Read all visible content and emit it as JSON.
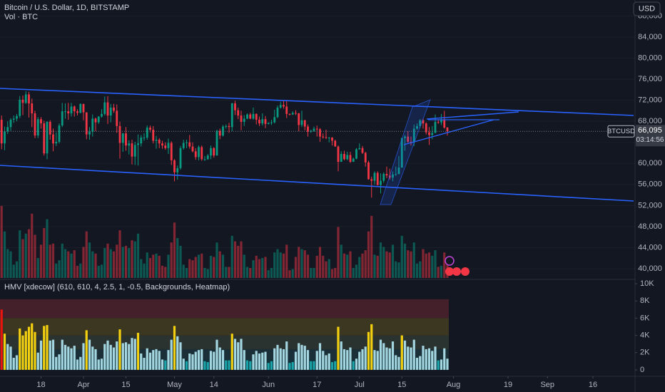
{
  "header": {
    "title": "Bitcoin / U.S. Dollar, 1D, BITSTAMP",
    "currency_button": "USD"
  },
  "chart_data": [
    {
      "type": "candlestick",
      "x": [
        "Mar 4",
        "Mar 5",
        "Mar 6",
        "Mar 7",
        "Mar 8",
        "Mar 9",
        "Mar 10",
        "Mar 11",
        "Mar 12",
        "Mar 13",
        "Mar 14",
        "Mar 15",
        "Mar 16",
        "Mar 17",
        "Mar 18",
        "Mar 19",
        "Mar 20",
        "Mar 21",
        "Mar 22",
        "Mar 23",
        "Mar 24",
        "Mar 25",
        "Mar 26",
        "Mar 27",
        "Mar 28",
        "Mar 29",
        "Mar 30",
        "Mar 31",
        "Apr 1",
        "Apr 2",
        "Apr 3",
        "Apr 4",
        "Apr 5",
        "Apr 6",
        "Apr 7",
        "Apr 8",
        "Apr 9",
        "Apr 10",
        "Apr 11",
        "Apr 12",
        "Apr 13",
        "Apr 14",
        "Apr 15",
        "Apr 16",
        "Apr 17",
        "Apr 18",
        "Apr 19",
        "Apr 20",
        "Apr 21",
        "Apr 22",
        "Apr 23",
        "Apr 24",
        "Apr 25",
        "Apr 26",
        "Apr 27",
        "Apr 28",
        "Apr 29",
        "Apr 30",
        "May 1",
        "May 2",
        "May 3",
        "May 4",
        "May 5",
        "May 6",
        "May 7",
        "May 8",
        "May 9",
        "May 10",
        "May 11",
        "May 12",
        "May 13",
        "May 14",
        "May 15",
        "May 16",
        "May 17",
        "May 18",
        "May 19",
        "May 20",
        "May 21",
        "May 22",
        "May 23",
        "May 24",
        "May 25",
        "May 26",
        "May 27",
        "May 28",
        "May 29",
        "May 30",
        "May 31",
        "Jun 1",
        "Jun 2",
        "Jun 3",
        "Jun 4",
        "Jun 5",
        "Jun 6",
        "Jun 7",
        "Jun 8",
        "Jun 9",
        "Jun 10",
        "Jun 11",
        "Jun 12",
        "Jun 13",
        "Jun 14",
        "Jun 15",
        "Jun 16",
        "Jun 17",
        "Jun 18",
        "Jun 19",
        "Jun 20",
        "Jun 21",
        "Jun 22",
        "Jun 23",
        "Jun 24",
        "Jun 25",
        "Jun 26",
        "Jun 27",
        "Jun 28",
        "Jun 29",
        "Jun 30",
        "Jul 1",
        "Jul 2",
        "Jul 3",
        "Jul 4",
        "Jul 5",
        "Jul 6",
        "Jul 7",
        "Jul 8",
        "Jul 9",
        "Jul 10",
        "Jul 11",
        "Jul 12",
        "Jul 13",
        "Jul 14",
        "Jul 15",
        "Jul 16",
        "Jul 17",
        "Jul 18",
        "Jul 19",
        "Jul 20",
        "Jul 21",
        "Jul 22",
        "Jul 23",
        "Jul 24",
        "Jul 25",
        "Jul 26",
        "Jul 27",
        "Jul 28",
        "Jul 29",
        "Jul 30"
      ],
      "open": [
        67500,
        68300,
        63800,
        66100,
        66900,
        68300,
        68500,
        69000,
        72100,
        71500,
        73100,
        71400,
        69500,
        65300,
        68400,
        67600,
        61900,
        67900,
        65500,
        63800,
        64100,
        67200,
        69900,
        69900,
        69500,
        70800,
        69900,
        69600,
        71300,
        69700,
        65500,
        66000,
        68500,
        67800,
        68900,
        69400,
        71600,
        69100,
        70600,
        70000,
        67100,
        63900,
        65700,
        63400,
        63800,
        61300,
        63500,
        63800,
        64900,
        64900,
        66800,
        66400,
        64300,
        64500,
        63800,
        63400,
        62900,
        63900,
        60600,
        58300,
        59100,
        62900,
        63900,
        64000,
        63200,
        62300,
        61200,
        63100,
        60800,
        60800,
        61500,
        62900,
        61500,
        66200,
        65300,
        67000,
        67100,
        66900,
        71400,
        70100,
        69100,
        67900,
        68500,
        69300,
        68500,
        69400,
        68300,
        67600,
        68400,
        67500,
        67700,
        67800,
        68800,
        70600,
        71100,
        70800,
        69400,
        69300,
        69600,
        69500,
        67300,
        68200,
        67000,
        66000,
        66200,
        66600,
        66500,
        65100,
        65000,
        64900,
        64900,
        64300,
        63200,
        60300,
        61800,
        60800,
        61600,
        60300,
        60900,
        62700,
        62900,
        62000,
        60200,
        57000,
        56700,
        58200,
        55900,
        56700,
        58000,
        57700,
        57300,
        57900,
        58000,
        59200,
        64800,
        65100,
        64100,
        64000,
        66600,
        67100,
        68200,
        67600,
        65900,
        65400,
        65800,
        67900,
        67800,
        68300,
        66800
      ],
      "high": [
        69000,
        69100,
        67000,
        68000,
        68600,
        69100,
        69400,
        72800,
        72900,
        73700,
        73600,
        72300,
        70000,
        68800,
        68800,
        68100,
        68000,
        68200,
        66600,
        65900,
        67600,
        71500,
        71400,
        71500,
        71500,
        71000,
        70300,
        71400,
        71300,
        69700,
        66900,
        69300,
        68700,
        69000,
        70300,
        72700,
        72800,
        71300,
        71300,
        71200,
        67900,
        65800,
        66900,
        64400,
        64500,
        64100,
        65500,
        65400,
        65700,
        67200,
        67200,
        67100,
        65200,
        64800,
        64300,
        64000,
        64700,
        64200,
        60800,
        59600,
        63300,
        64500,
        64500,
        65400,
        64000,
        62900,
        63400,
        63400,
        61400,
        61800,
        63400,
        63100,
        66400,
        66600,
        67300,
        67400,
        67700,
        71500,
        71900,
        70600,
        70000,
        69200,
        69500,
        69600,
        70600,
        69500,
        68900,
        69500,
        69000,
        67800,
        68300,
        70200,
        71000,
        71700,
        71900,
        71900,
        69500,
        69900,
        70100,
        69600,
        70000,
        68300,
        67400,
        66400,
        67000,
        67200,
        66700,
        65700,
        66400,
        65000,
        65000,
        64500,
        63400,
        62300,
        62400,
        62200,
        62200,
        61100,
        62900,
        63800,
        63300,
        62200,
        60500,
        57500,
        58500,
        58500,
        58100,
        58300,
        59400,
        59000,
        58500,
        59400,
        61400,
        64900,
        65400,
        66100,
        65100,
        67400,
        67600,
        68400,
        68500,
        67800,
        66900,
        67100,
        69300,
        68300,
        69400,
        70000,
        66900
      ],
      "low": [
        66500,
        62700,
        62500,
        65600,
        66200,
        67700,
        68000,
        68600,
        69200,
        71300,
        68700,
        66900,
        64800,
        64800,
        66600,
        61500,
        60800,
        64500,
        62300,
        63300,
        63800,
        66900,
        68500,
        68300,
        68900,
        68900,
        69100,
        69500,
        68200,
        64600,
        64500,
        65100,
        66100,
        67500,
        68700,
        69100,
        67500,
        67800,
        69600,
        65800,
        60900,
        62200,
        62400,
        61700,
        59800,
        59700,
        59600,
        63200,
        64300,
        64500,
        65900,
        63800,
        62800,
        62900,
        62800,
        62600,
        61800,
        59700,
        56600,
        56900,
        58800,
        62600,
        62900,
        62800,
        62100,
        60700,
        60600,
        60500,
        60500,
        60700,
        60800,
        61100,
        61500,
        64600,
        65100,
        66600,
        65800,
        66100,
        69200,
        68400,
        66300,
        67100,
        68400,
        68400,
        68300,
        67400,
        67100,
        67200,
        66700,
        67400,
        67300,
        67600,
        68600,
        70400,
        70400,
        68600,
        69100,
        69200,
        69200,
        66100,
        66900,
        66300,
        65100,
        65800,
        66000,
        65100,
        64100,
        64700,
        64600,
        64000,
        63400,
        63200,
        58500,
        60300,
        60600,
        60600,
        60100,
        60300,
        60800,
        62600,
        61800,
        59400,
        56900,
        53500,
        56000,
        55800,
        54300,
        56300,
        57200,
        56900,
        56600,
        57600,
        57900,
        59200,
        62400,
        63900,
        63400,
        63300,
        66400,
        66700,
        66600,
        65500,
        63500,
        64600,
        65700,
        67500,
        67300,
        66600,
        65300
      ],
      "close": [
        68300,
        63800,
        66100,
        66900,
        68300,
        68500,
        69000,
        72100,
        71500,
        73100,
        71400,
        69500,
        65300,
        68400,
        67600,
        61900,
        67900,
        65500,
        63800,
        64100,
        67200,
        69900,
        69900,
        69500,
        70800,
        69900,
        69600,
        71300,
        69700,
        65500,
        66000,
        68500,
        67800,
        68900,
        69400,
        71600,
        69100,
        70600,
        70000,
        67100,
        63900,
        65700,
        63400,
        63800,
        61300,
        63500,
        63800,
        64900,
        64900,
        66800,
        66400,
        64300,
        64500,
        63800,
        63400,
        62900,
        63900,
        60600,
        58300,
        59100,
        62900,
        63900,
        64000,
        63200,
        62300,
        61200,
        63100,
        60800,
        60800,
        61500,
        62900,
        61500,
        66200,
        65300,
        67000,
        67100,
        66900,
        71400,
        70100,
        69100,
        67900,
        68500,
        69300,
        68500,
        69400,
        68300,
        67600,
        68400,
        67500,
        67700,
        67800,
        68800,
        70600,
        71100,
        70800,
        69400,
        69300,
        69600,
        69500,
        67300,
        68200,
        67000,
        66000,
        66200,
        66600,
        66500,
        65100,
        65000,
        64900,
        64900,
        64300,
        63200,
        60300,
        61800,
        60800,
        61600,
        60300,
        60900,
        62700,
        62900,
        62000,
        60200,
        57000,
        56700,
        58200,
        55900,
        56700,
        58000,
        57700,
        57300,
        57900,
        58000,
        59200,
        64800,
        65100,
        64100,
        64000,
        66600,
        67100,
        68200,
        67600,
        65900,
        65400,
        65800,
        67900,
        67800,
        68300,
        66800,
        66095
      ],
      "up_color": "#089981",
      "down_color": "#f23645",
      "ylim": [
        38240,
        91040
      ],
      "yticks": [
        {
          "value": 40000,
          "label": "40,000"
        },
        {
          "value": 44000,
          "label": "44,000"
        },
        {
          "value": 48000,
          "label": "48,000"
        },
        {
          "value": 52000,
          "label": "52,000"
        },
        {
          "value": 56000,
          "label": "56,000"
        },
        {
          "value": 60000,
          "label": "60,000"
        },
        {
          "value": 64000,
          "label": "64,000"
        },
        {
          "value": 68000,
          "label": "68,000"
        },
        {
          "value": 72000,
          "label": "72,000"
        },
        {
          "value": 76000,
          "label": "76,000"
        },
        {
          "value": 80000,
          "label": "80,000"
        },
        {
          "value": 84000,
          "label": "84,000"
        },
        {
          "value": 88000,
          "label": "88,000"
        }
      ],
      "xticks": [
        {
          "value": "Mar 18",
          "label": "18"
        },
        {
          "value": "Apr 1",
          "label": "Apr"
        },
        {
          "value": "Apr 15",
          "label": "15"
        },
        {
          "value": "May 1",
          "label": "May"
        },
        {
          "value": "May 14",
          "label": "14"
        },
        {
          "value": "Jun 1",
          "label": "Jun"
        },
        {
          "value": "Jun 17",
          "label": "17"
        },
        {
          "value": "Jul 1",
          "label": "Jul"
        },
        {
          "value": "Jul 15",
          "label": "15"
        },
        {
          "value": "Aug 1",
          "label": "Aug"
        },
        {
          "value": "Aug 19",
          "label": "19"
        },
        {
          "value": "Sep 1",
          "label": "Sep"
        },
        {
          "value": "Sep 16",
          "label": "16"
        }
      ],
      "last_price": {
        "symbol": "BTCUSD",
        "value_label": "66,095",
        "countdown": "03:14:56"
      }
    },
    {
      "type": "volume",
      "title": "Vol · BTC",
      "values": [
        3800,
        6500,
        4200,
        2600,
        2400,
        1200,
        1500,
        4300,
        3500,
        4000,
        4400,
        5800,
        3900,
        1800,
        3000,
        4500,
        5300,
        3000,
        3100,
        1300,
        1600,
        3100,
        2600,
        2400,
        2200,
        2500,
        1100,
        1300,
        2800,
        4200,
        3200,
        2400,
        2200,
        1100,
        1200,
        2700,
        3100,
        2600,
        2400,
        3000,
        4300,
        2800,
        2900,
        2700,
        3400,
        3300,
        4000,
        1700,
        1300,
        2300,
        1800,
        2100,
        2200,
        2000,
        1100,
        1000,
        2100,
        3200,
        5000,
        3600,
        2900,
        1200,
        900,
        1700,
        1600,
        1900,
        2100,
        2200,
        900,
        800,
        2000,
        1900,
        3200,
        2400,
        2100,
        1000,
        1000,
        3800,
        3300,
        2900,
        3300,
        2100,
        1000,
        900,
        1600,
        2000,
        1700,
        1800,
        1900,
        700,
        900,
        2300,
        2600,
        2300,
        2200,
        3000,
        700,
        800,
        1900,
        2800,
        2600,
        2500,
        2100,
        900,
        900,
        2000,
        2800,
        2000,
        1500,
        1700,
        800,
        900,
        4600,
        3000,
        2200,
        2100,
        2400,
        900,
        1200,
        1900,
        2200,
        2500,
        4200,
        5600,
        2100,
        2000,
        3200,
        2800,
        2400,
        2300,
        3000,
        1500,
        1400,
        3800,
        3100,
        2500,
        2400,
        3200,
        1300,
        1500,
        2600,
        2200,
        2300,
        2000,
        2500,
        1000,
        1100,
        2300,
        1200
      ],
      "ylim": [
        0,
        9000
      ]
    },
    {
      "type": "hmv",
      "title": "HMV [xdecow] (610, 610, 4, 2.5, 1, -0.5, Backgrounds, Heatmap)",
      "values": [
        7400,
        7000,
        4200,
        3000,
        2700,
        1400,
        1700,
        4800,
        4000,
        4500,
        5000,
        5400,
        4400,
        2000,
        3400,
        5100,
        5200,
        3400,
        3500,
        1500,
        1800,
        3500,
        2900,
        2700,
        2500,
        2800,
        1200,
        1500,
        3100,
        4600,
        3500,
        2700,
        2400,
        1200,
        1300,
        3000,
        3400,
        2900,
        2600,
        3300,
        4700,
        3100,
        3200,
        3000,
        3700,
        3600,
        4300,
        1900,
        1400,
        2500,
        2000,
        2300,
        2400,
        2200,
        1200,
        1100,
        2300,
        3500,
        5100,
        3900,
        3200,
        1300,
        1000,
        1900,
        1800,
        2100,
        2300,
        2400,
        1000,
        900,
        2200,
        2100,
        3500,
        2600,
        2300,
        1100,
        1100,
        4200,
        3600,
        3200,
        3600,
        2300,
        1100,
        1000,
        1800,
        2200,
        1900,
        2000,
        2100,
        800,
        1000,
        2500,
        2900,
        2500,
        2400,
        3300,
        800,
        900,
        2100,
        3100,
        2900,
        2800,
        2300,
        1000,
        1000,
        2200,
        3100,
        2200,
        1700,
        1900,
        900,
        1000,
        5000,
        3300,
        2400,
        2300,
        2600,
        1000,
        1300,
        2100,
        2400,
        2700,
        4400,
        5300,
        2300,
        2200,
        3500,
        3100,
        2600,
        2500,
        3300,
        1700,
        1500,
        4000,
        3400,
        2700,
        2600,
        3500,
        1400,
        1600,
        2800,
        2400,
        2500,
        2200,
        2700,
        1100,
        1200,
        2500,
        1300
      ],
      "ylim": [
        -750,
        10500
      ],
      "yticks": [
        0,
        {
          "value": 2000,
          "label": "2K"
        },
        {
          "value": 4000,
          "label": "4K"
        },
        {
          "value": 6000,
          "label": "6K"
        },
        {
          "value": 8000,
          "label": "8K"
        },
        {
          "value": 10000,
          "label": "10K"
        }
      ],
      "bands": [
        {
          "from": 0,
          "to": 1200,
          "color": "#10333b",
          "bar_color": "#1aa3a8"
        },
        {
          "from": 1200,
          "to": 2400,
          "color": "#1b2f38",
          "bar_color": "#a3d6e0"
        },
        {
          "from": 2400,
          "to": 4000,
          "color": "#2a3330",
          "bar_color": "#a3d6e0"
        },
        {
          "from": 4000,
          "to": 6000,
          "color": "#3c3721",
          "bar_color": "#f2d00f"
        },
        {
          "from": 6000,
          "to": 8200,
          "color": "#43202a",
          "bar_color": "#e8140f"
        }
      ]
    }
  ]
}
